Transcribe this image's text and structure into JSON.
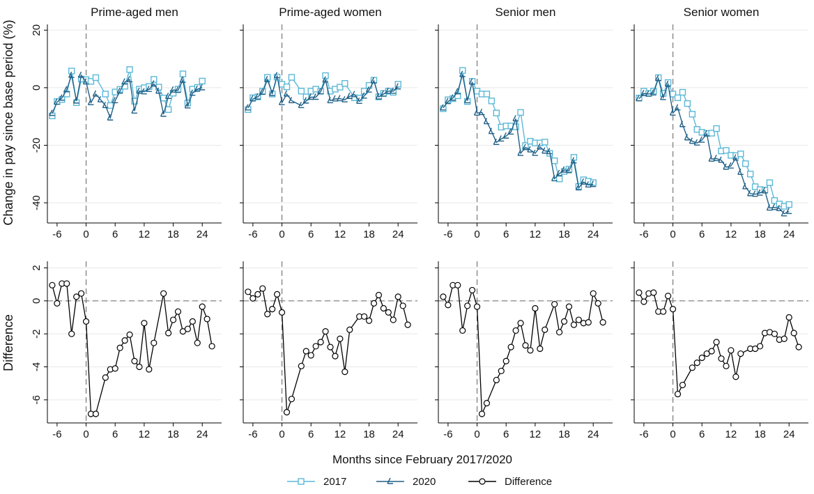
{
  "figure": {
    "y_label_top": "Change in pay since base period (%)",
    "y_label_bottom": "Difference",
    "x_label": "Months since February 2017/2020",
    "legend": [
      {
        "label": "2017",
        "color": "#5BB8D7",
        "marker": "square"
      },
      {
        "label": "2020",
        "color": "#1F5F86",
        "marker": "triangle"
      },
      {
        "label": "Difference",
        "color": "#000000",
        "marker": "circle"
      }
    ],
    "legend_placement": "bottom-center"
  },
  "chart_data": [
    {
      "type": "line",
      "panel": "top",
      "title": "Prime-aged men",
      "x": [
        -7,
        -6,
        -5,
        -4,
        -3,
        -2,
        -1,
        0,
        1,
        2,
        3,
        4,
        5,
        6,
        7,
        8,
        9,
        10,
        11,
        12,
        13,
        14,
        15,
        16,
        17,
        18,
        19,
        20,
        21,
        22,
        23,
        24,
        25,
        26,
        27
      ],
      "series": [
        {
          "name": "2017",
          "values": [
            -9.8,
            -4.8,
            -4.1,
            -2.2,
            5.8,
            -5.2,
            3.0,
            2.8,
            2.2,
            3.5,
            null,
            -2.2,
            -6.2,
            -1.5,
            -0.6,
            0.5,
            6.3,
            -4.7,
            -0.5,
            0.0,
            0.4,
            2.9,
            0.2,
            -3.6,
            -7.6,
            -1.9,
            -0.5,
            4.8,
            -5.3,
            -0.5,
            0.1,
            2.3,
            null,
            null,
            null
          ]
        },
        {
          "name": "2020",
          "values": [
            -8.9,
            -5.0,
            -3.6,
            -0.7,
            4.3,
            -4.6,
            4.3,
            2.0,
            -5.2,
            -2.2,
            -4.2,
            -6.2,
            -10.5,
            -4.5,
            -1.2,
            2.0,
            2.8,
            -8.1,
            -1.2,
            -1.4,
            -0.6,
            1.3,
            -1.2,
            -9.2,
            -3.0,
            -0.8,
            -0.9,
            2.6,
            -6.3,
            -1.9,
            -0.5,
            0.0,
            null,
            null,
            null
          ]
        }
      ],
      "xticks": [
        -6,
        0,
        6,
        12,
        18,
        24
      ],
      "yticks": [
        -40,
        -20,
        0,
        20
      ],
      "ylim": [
        -47,
        22
      ],
      "xlim": [
        -8,
        28
      ]
    },
    {
      "type": "line",
      "panel": "top",
      "title": "Prime-aged women",
      "x": [
        -7,
        -6,
        -5,
        -4,
        -3,
        -2,
        -1,
        0,
        1,
        2,
        3,
        4,
        5,
        6,
        7,
        8,
        9,
        10,
        11,
        12,
        13,
        14,
        15,
        16,
        17,
        18,
        19,
        20,
        21,
        22,
        23,
        24,
        25,
        26,
        27
      ],
      "series": [
        {
          "name": "2017",
          "values": [
            -7.6,
            -3.5,
            -3.2,
            -1.2,
            3.6,
            -2.2,
            3.7,
            1.2,
            0.3,
            3.6,
            null,
            -1.2,
            -3.2,
            -1.2,
            -0.5,
            -1.2,
            4.2,
            -1.2,
            -0.5,
            0.2,
            1.5,
            null,
            -3.5,
            -3.6,
            -1.2,
            0.8,
            2.6,
            -3.2,
            -2.0,
            -1.2,
            -1.6,
            1.2,
            null,
            null,
            null
          ]
        },
        {
          "name": "2020",
          "values": [
            -7.0,
            -3.9,
            -3.2,
            -1.6,
            2.8,
            -2.0,
            4.2,
            -5.2,
            -2.2,
            -4.5,
            null,
            -6.2,
            -4.6,
            -3.3,
            -3.3,
            -1.4,
            2.7,
            -4.5,
            -3.9,
            -3.8,
            -4.2,
            -3.0,
            -2.4,
            -4.7,
            -2.9,
            -0.8,
            2.4,
            -3.2,
            -2.2,
            -1.2,
            -1.2,
            0.3,
            null,
            null,
            null
          ]
        }
      ],
      "xticks": [
        -6,
        0,
        6,
        12,
        18,
        24
      ],
      "yticks": [
        -40,
        -20,
        0,
        20
      ],
      "ylim": [
        -47,
        22
      ],
      "xlim": [
        -8,
        28
      ]
    },
    {
      "type": "line",
      "panel": "top",
      "title": "Senior men",
      "x": [
        -7,
        -6,
        -5,
        -4,
        -3,
        -2,
        -1,
        0,
        1,
        2,
        3,
        4,
        5,
        6,
        7,
        8,
        9,
        10,
        11,
        12,
        13,
        14,
        15,
        16,
        17,
        18,
        19,
        20,
        21,
        22,
        23,
        24,
        25,
        26,
        27
      ],
      "series": [
        {
          "name": "2017",
          "values": [
            -7.3,
            -4.2,
            -3.8,
            -2.8,
            6.0,
            -4.8,
            2.2,
            -1.2,
            -2.2,
            -2.2,
            -4.6,
            -8.8,
            -13.7,
            -13.3,
            -13.3,
            -13.6,
            -8.6,
            -20.1,
            -18.6,
            -19.2,
            -19.2,
            -18.9,
            -22.8,
            -25.4,
            -31.7,
            -29.1,
            -28.3,
            -24.2,
            -34.3,
            -32.0,
            -32.5,
            -33.0,
            null,
            null,
            null
          ]
        },
        {
          "name": "2020",
          "values": [
            -7.0,
            -4.8,
            -3.6,
            -1.4,
            4.6,
            -4.5,
            2.0,
            -8.8,
            -8.6,
            -11.8,
            -15.2,
            -19.0,
            -17.8,
            -16.8,
            -15.4,
            -10.8,
            -22.8,
            -20.8,
            -21.6,
            -22.8,
            -20.6,
            -22.0,
            -22.2,
            -31.6,
            -29.8,
            -28.6,
            -28.8,
            -25.4,
            -34.8,
            -32.8,
            -33.8,
            -33.6,
            null,
            null,
            null
          ]
        }
      ],
      "xticks": [
        -6,
        0,
        6,
        12,
        18,
        24
      ],
      "yticks": [
        -40,
        -20,
        0,
        20
      ],
      "ylim": [
        -47,
        22
      ],
      "xlim": [
        -8,
        28
      ]
    },
    {
      "type": "line",
      "panel": "top",
      "title": "Senior women",
      "x": [
        -7,
        -6,
        -5,
        -4,
        -3,
        -2,
        -1,
        0,
        1,
        2,
        3,
        4,
        5,
        6,
        7,
        8,
        9,
        10,
        11,
        12,
        13,
        14,
        15,
        16,
        17,
        18,
        19,
        20,
        21,
        22,
        23,
        24,
        25,
        26,
        27
      ],
      "series": [
        {
          "name": "2017",
          "values": [
            -3.6,
            -1.2,
            -2.0,
            -1.2,
            3.5,
            -2.0,
            1.8,
            -2.2,
            -3.5,
            -1.6,
            -5.5,
            -9.2,
            -14.5,
            -15.5,
            -15.9,
            -15.8,
            -14.2,
            -22.0,
            -21.8,
            -23.5,
            -23.6,
            -23.0,
            -26.4,
            -30.0,
            -34.4,
            -35.4,
            -35.6,
            -33.0,
            -39.2,
            -40.4,
            -41.2,
            -40.6,
            null,
            null,
            null
          ]
        },
        {
          "name": "2020",
          "values": [
            -3.8,
            -2.0,
            -2.2,
            -1.8,
            3.2,
            -3.4,
            1.2,
            -8.8,
            -7.0,
            -12.8,
            -17.4,
            -18.6,
            -19.2,
            -18.2,
            -16.0,
            -24.8,
            -24.6,
            -25.2,
            -27.6,
            -27.2,
            -24.4,
            -29.4,
            -34.4,
            -36.8,
            -37.0,
            -36.6,
            -35.8,
            -41.8,
            -41.6,
            -42.0,
            -43.8,
            -43.0,
            null,
            null,
            null
          ]
        }
      ],
      "xticks": [
        -6,
        0,
        6,
        12,
        18,
        24
      ],
      "yticks": [
        -40,
        -20,
        0,
        20
      ],
      "ylim": [
        -47,
        22
      ],
      "xlim": [
        -8,
        28
      ]
    },
    {
      "type": "line",
      "panel": "bottom",
      "title": "",
      "x": [
        -7,
        -6,
        -5,
        -4,
        -3,
        -2,
        -1,
        0,
        1,
        2,
        3,
        4,
        5,
        6,
        7,
        8,
        9,
        10,
        11,
        12,
        13,
        14,
        15,
        16,
        17,
        18,
        19,
        20,
        21,
        22,
        23,
        24,
        25,
        26,
        27
      ],
      "series": [
        {
          "name": "Difference",
          "values": [
            0.95,
            -0.15,
            1.05,
            1.05,
            -2.0,
            0.25,
            0.45,
            -1.25,
            -6.85,
            -6.85,
            null,
            -4.65,
            -4.15,
            -4.1,
            -2.85,
            -2.4,
            -2.05,
            -3.65,
            -4.0,
            -1.35,
            -4.15,
            -2.55,
            null,
            0.45,
            -1.95,
            -1.15,
            -0.65,
            -1.85,
            -1.7,
            -1.25,
            -2.55,
            -0.35,
            -1.1,
            -2.75,
            null
          ]
        }
      ],
      "xticks": [
        -6,
        0,
        6,
        12,
        18,
        24
      ],
      "yticks": [
        -6,
        -4,
        -2,
        0,
        2
      ],
      "ylim": [
        -7.4,
        2.4
      ],
      "xlim": [
        -8,
        28
      ]
    },
    {
      "type": "line",
      "panel": "bottom",
      "title": "",
      "x": [
        -7,
        -6,
        -5,
        -4,
        -3,
        -2,
        -1,
        0,
        1,
        2,
        3,
        4,
        5,
        6,
        7,
        8,
        9,
        10,
        11,
        12,
        13,
        14,
        15,
        16,
        17,
        18,
        19,
        20,
        21,
        22,
        23,
        24,
        25,
        26,
        27
      ],
      "series": [
        {
          "name": "Difference",
          "values": [
            0.55,
            0.15,
            0.4,
            0.75,
            -0.8,
            -0.5,
            0.4,
            -0.7,
            -6.75,
            -5.95,
            null,
            -3.95,
            -3.05,
            -3.3,
            -2.75,
            -2.5,
            -1.85,
            -2.8,
            -3.35,
            -2.3,
            -4.3,
            -1.75,
            null,
            -0.95,
            -0.95,
            -1.2,
            -0.15,
            0.35,
            -0.45,
            -0.7,
            -1.15,
            0.25,
            -0.3,
            -1.45,
            null
          ]
        }
      ],
      "xticks": [
        -6,
        0,
        6,
        12,
        18,
        24
      ],
      "yticks": [
        -6,
        -4,
        -2,
        0,
        2
      ],
      "ylim": [
        -7.4,
        2.4
      ],
      "xlim": [
        -8,
        28
      ]
    },
    {
      "type": "line",
      "panel": "bottom",
      "title": "",
      "x": [
        -7,
        -6,
        -5,
        -4,
        -3,
        -2,
        -1,
        0,
        1,
        2,
        3,
        4,
        5,
        6,
        7,
        8,
        9,
        10,
        11,
        12,
        13,
        14,
        15,
        16,
        17,
        18,
        19,
        20,
        21,
        22,
        23,
        24,
        25,
        26,
        27
      ],
      "series": [
        {
          "name": "Difference",
          "values": [
            0.25,
            -0.25,
            0.95,
            0.95,
            -1.8,
            -0.3,
            0.65,
            -0.35,
            -6.85,
            -6.2,
            null,
            -4.8,
            -4.25,
            -3.65,
            -2.8,
            -1.8,
            -1.35,
            -2.7,
            -3.0,
            -0.45,
            -2.9,
            -1.75,
            null,
            -0.2,
            -1.9,
            -1.25,
            -0.35,
            -1.45,
            -1.15,
            -1.35,
            -1.3,
            0.45,
            -0.15,
            -1.3,
            null
          ]
        }
      ],
      "xticks": [
        -6,
        0,
        6,
        12,
        18,
        24
      ],
      "yticks": [
        -6,
        -4,
        -2,
        0,
        2
      ],
      "ylim": [
        -7.4,
        2.4
      ],
      "xlim": [
        -8,
        28
      ]
    },
    {
      "type": "line",
      "panel": "bottom",
      "title": "",
      "x": [
        -7,
        -6,
        -5,
        -4,
        -3,
        -2,
        -1,
        0,
        1,
        2,
        3,
        4,
        5,
        6,
        7,
        8,
        9,
        10,
        11,
        12,
        13,
        14,
        15,
        16,
        17,
        18,
        19,
        20,
        21,
        22,
        23,
        24,
        25,
        26,
        27
      ],
      "series": [
        {
          "name": "Difference",
          "values": [
            0.5,
            -0.05,
            0.45,
            0.5,
            -0.65,
            -0.65,
            0.3,
            -0.5,
            -5.65,
            -5.1,
            null,
            -4.05,
            -3.75,
            -3.45,
            -3.2,
            -3.05,
            -2.5,
            -3.5,
            -3.95,
            -3.0,
            -4.6,
            -3.2,
            null,
            -2.9,
            -2.9,
            -2.75,
            -1.95,
            -1.9,
            -2.0,
            -2.35,
            -2.3,
            -1.0,
            -1.95,
            -2.8,
            null
          ]
        }
      ],
      "xticks": [
        -6,
        0,
        6,
        12,
        18,
        24
      ],
      "yticks": [
        -6,
        -4,
        -2,
        0,
        2
      ],
      "ylim": [
        -7.4,
        2.4
      ],
      "xlim": [
        -8,
        28
      ]
    }
  ]
}
